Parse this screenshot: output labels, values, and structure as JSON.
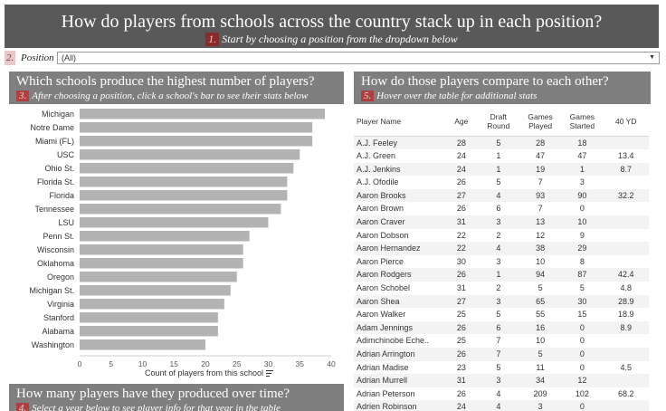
{
  "header": {
    "title": "How do players from schools across the country stack up in each position?",
    "step_num": "1.",
    "subtitle": "Start by choosing a position from the dropdown below"
  },
  "filter": {
    "step_num": "2.",
    "label": "Position",
    "value": "(All)"
  },
  "left_panel": {
    "title": "Which schools produce the highest number of players?",
    "step_num": "3.",
    "subtitle": "After choosing a position, click a school's bar to see their stats below"
  },
  "right_panel": {
    "title": "How do those players compare to each other?",
    "step_num": "5.",
    "subtitle": "Hover over the table for additional stats"
  },
  "bottom_panel": {
    "title": "How many players have they produced over time?",
    "step_num": "4.",
    "subtitle": "Select a year below to see player info for that year in the table"
  },
  "chart_data": {
    "type": "bar",
    "orientation": "horizontal",
    "categories": [
      "Michigan",
      "Notre Dame",
      "Miami (FL)",
      "USC",
      "Ohio St.",
      "Florida St.",
      "Florida",
      "Tennessee",
      "LSU",
      "Penn St.",
      "Wisconsin",
      "Oklahoma",
      "Oregon",
      "Michigan St.",
      "Virginia",
      "Stanford",
      "Alabama",
      "Washington"
    ],
    "values": [
      39,
      37,
      37,
      35,
      34,
      33,
      33,
      32,
      30,
      27,
      26,
      26,
      25,
      24,
      23,
      22,
      22,
      20
    ],
    "xlabel": "Count of players from this school",
    "xlim": [
      0,
      40
    ],
    "xticks": [
      0,
      5,
      10,
      15,
      20,
      25,
      30,
      35,
      40
    ],
    "bar_color": "#b3b3b3"
  },
  "table": {
    "columns": [
      "Player Name",
      "Age",
      "Draft\nRound",
      "Games\nPlayed",
      "Games\nStarted",
      "40 YD"
    ],
    "rows": [
      [
        "A.J. Feeley",
        "28",
        "5",
        "28",
        "18",
        ""
      ],
      [
        "A.J. Green",
        "24",
        "1",
        "47",
        "47",
        "13.4"
      ],
      [
        "A.J. Jenkins",
        "24",
        "1",
        "19",
        "1",
        "8.7"
      ],
      [
        "A.J. Ofodile",
        "26",
        "5",
        "7",
        "3",
        ""
      ],
      [
        "Aaron Brooks",
        "27",
        "4",
        "93",
        "90",
        "32.2"
      ],
      [
        "Aaron Brown",
        "26",
        "6",
        "7",
        "0",
        ""
      ],
      [
        "Aaron Craver",
        "31",
        "3",
        "13",
        "10",
        ""
      ],
      [
        "Aaron Dobson",
        "22",
        "2",
        "12",
        "9",
        ""
      ],
      [
        "Aaron Hernandez",
        "22",
        "4",
        "38",
        "29",
        ""
      ],
      [
        "Aaron Pierce",
        "30",
        "3",
        "10",
        "8",
        ""
      ],
      [
        "Aaron Rodgers",
        "26",
        "1",
        "94",
        "87",
        "42.4"
      ],
      [
        "Aaron Schobel",
        "31",
        "2",
        "5",
        "5",
        "4.8"
      ],
      [
        "Aaron Shea",
        "27",
        "3",
        "65",
        "30",
        "28.9"
      ],
      [
        "Aaron Walker",
        "25",
        "5",
        "55",
        "15",
        "18.9"
      ],
      [
        "Adam Jennings",
        "26",
        "6",
        "16",
        "0",
        "8.9"
      ],
      [
        "Adimchinobe Eche..",
        "25",
        "7",
        "10",
        "0",
        ""
      ],
      [
        "Adrian Arrington",
        "26",
        "7",
        "5",
        "0",
        ""
      ],
      [
        "Adrian Madise",
        "23",
        "5",
        "11",
        "0",
        "4.5"
      ],
      [
        "Adrian Murrell",
        "31",
        "3",
        "34",
        "12",
        ""
      ],
      [
        "Adrian Peterson",
        "26",
        "4",
        "209",
        "102",
        "68.2"
      ],
      [
        "Adrien Robinson",
        "24",
        "4",
        "3",
        "0",
        ""
      ]
    ]
  }
}
